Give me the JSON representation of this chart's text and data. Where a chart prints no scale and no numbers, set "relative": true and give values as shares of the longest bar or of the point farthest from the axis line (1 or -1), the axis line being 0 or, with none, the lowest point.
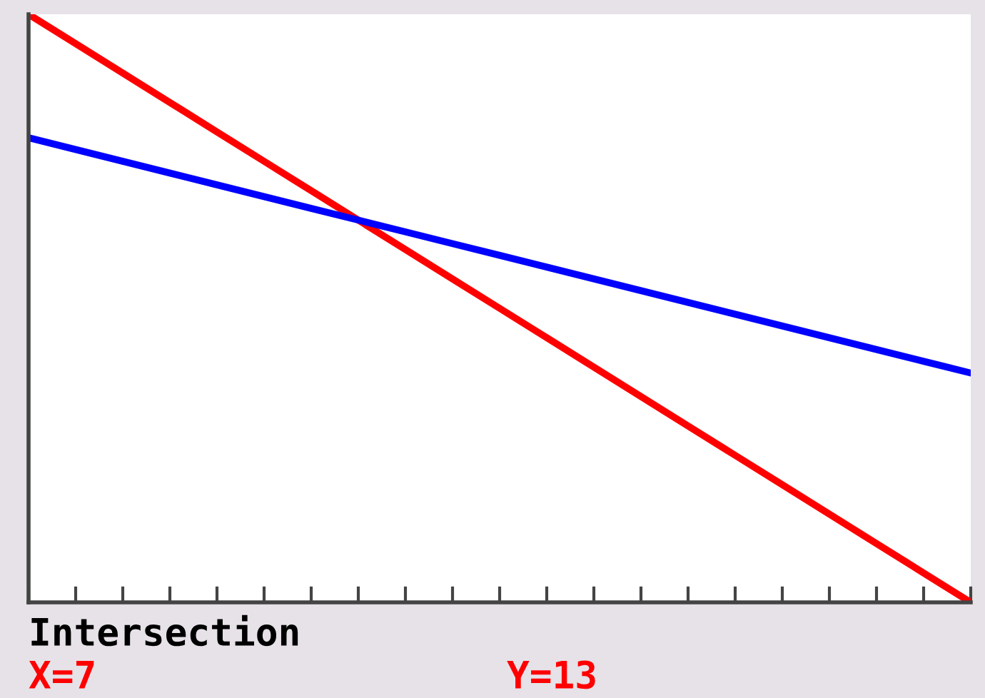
{
  "chart_data": {
    "type": "line",
    "relative": true,
    "categories": [
      null,
      null,
      null,
      null,
      null,
      null,
      null,
      null,
      null,
      null,
      null,
      null,
      null,
      null,
      null,
      null,
      null,
      null,
      null,
      null,
      null
    ],
    "series": [
      {
        "color": "#ff0000",
        "values": [
          1,
          0.95,
          0.9,
          0.85,
          0.8,
          0.75,
          0.7,
          0.65,
          0.6,
          0.55,
          0.5,
          0.45,
          0.4,
          0.35,
          0.3,
          0.25,
          0.2,
          0.15,
          0.1,
          0.05,
          0
        ]
      },
      {
        "color": "#0000ff",
        "values": [
          0.79,
          0.77,
          0.75,
          0.73,
          0.71,
          0.69,
          0.67,
          0.65,
          0.63,
          0.61,
          0.59,
          0.57,
          0.55,
          0.53,
          0.51,
          0.49,
          0.47,
          0.45,
          0.43,
          0.41,
          0.39
        ]
      }
    ],
    "annotations": [
      "Intersection",
      "X=7",
      "Y=13"
    ],
    "grid": false,
    "legend": false,
    "marker": "none",
    "line_style": "solid"
  }
}
